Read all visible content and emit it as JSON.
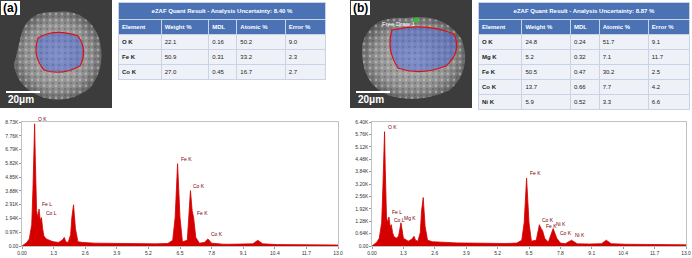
{
  "panels": [
    {
      "label": "(a)",
      "image": {
        "scale_bar": "20μm"
      },
      "table": {
        "title": "eZAF Quant Result - Analysis Uncertainty: 8.40 %",
        "header": [
          "Element",
          "Weight %",
          "MDL",
          "Atomic %",
          "Error %"
        ],
        "rows": [
          [
            "O K",
            "22.1",
            "0.16",
            "50.2",
            "9.0"
          ],
          [
            "Fe K",
            "50.9",
            "0.31",
            "33.2",
            "2.3"
          ],
          [
            "Co K",
            "27.0",
            "0.45",
            "16.7",
            "2.7"
          ]
        ]
      }
    },
    {
      "label": "(b)",
      "image": {
        "scale_bar": "20μm",
        "region_label": "Free Draw 1"
      },
      "table": {
        "title": "eZAF Quant Result - Analysis Uncertainty: 8.87 %",
        "header": [
          "Element",
          "Weight %",
          "MDL",
          "Atomic %",
          "Error %"
        ],
        "rows": [
          [
            "O K",
            "24.8",
            "0.24",
            "51.7",
            "9.1"
          ],
          [
            "Mg K",
            "5.2",
            "0.32",
            "7.1",
            "11.7"
          ],
          [
            "Fe K",
            "50.5",
            "0.47",
            "30.2",
            "2.5"
          ],
          [
            "Co K",
            "13.7",
            "0.66",
            "7.7",
            "4.2"
          ],
          [
            "Ni K",
            "5.9",
            "0.52",
            "3.3",
            "6.6"
          ]
        ]
      }
    }
  ],
  "chart_data": [
    {
      "type": "area",
      "color": "#d40000",
      "x": [
        0,
        0.1,
        0.2,
        0.3,
        0.4,
        0.45,
        0.5,
        0.52,
        0.55,
        0.6,
        0.65,
        0.7,
        0.75,
        0.8,
        0.85,
        0.9,
        1.0,
        1.1,
        1.2,
        1.3,
        1.5,
        1.65,
        1.74,
        1.8,
        1.9,
        2.0,
        2.05,
        2.12,
        2.2,
        2.3,
        2.5,
        3.0,
        3.5,
        4.0,
        4.5,
        5.0,
        5.5,
        6.0,
        6.2,
        6.3,
        6.4,
        6.5,
        6.6,
        6.8,
        6.93,
        7.0,
        7.06,
        7.15,
        7.3,
        7.5,
        7.65,
        7.8,
        8.0,
        8.26,
        8.5,
        9.0,
        9.5,
        9.7,
        9.9,
        10.5,
        11.0,
        12.0,
        13.0
      ],
      "values": [
        0,
        100,
        250,
        500,
        1500,
        4000,
        8000,
        8600,
        6000,
        2500,
        2000,
        2600,
        1800,
        2000,
        1200,
        700,
        500,
        400,
        350,
        300,
        250,
        400,
        600,
        300,
        250,
        800,
        2000,
        2900,
        1200,
        300,
        250,
        200,
        180,
        170,
        160,
        150,
        150,
        180,
        400,
        2000,
        5800,
        2000,
        300,
        400,
        3900,
        2500,
        2000,
        600,
        200,
        250,
        500,
        200,
        150,
        130,
        120,
        110,
        150,
        400,
        150,
        100,
        90,
        80,
        70
      ],
      "xlim": [
        0,
        13
      ],
      "xticks": [
        {
          "value": 0,
          "label": "0.00"
        },
        {
          "value": 1.3,
          "label": "1.3"
        },
        {
          "value": 2.6,
          "label": "2.6"
        },
        {
          "value": 3.9,
          "label": "3.9"
        },
        {
          "value": 5.2,
          "label": "5.2"
        },
        {
          "value": 6.5,
          "label": "6.5"
        },
        {
          "value": 7.8,
          "label": "7.8"
        },
        {
          "value": 9.1,
          "label": "9.1"
        },
        {
          "value": 10.4,
          "label": "10.4"
        },
        {
          "value": 11.7,
          "label": "11.7"
        },
        {
          "value": 13,
          "label": "13.0"
        }
      ],
      "ylim": [
        0,
        8730
      ],
      "yticks": [
        {
          "value": 0,
          "label": "0.00"
        },
        {
          "value": 970,
          "label": "0.97K"
        },
        {
          "value": 1940,
          "label": "1.94K"
        },
        {
          "value": 2910,
          "label": "2.91K"
        },
        {
          "value": 3880,
          "label": "3.88K"
        },
        {
          "value": 4850,
          "label": "4.85K"
        },
        {
          "value": 5820,
          "label": "5.82K"
        },
        {
          "value": 6790,
          "label": "6.79K"
        },
        {
          "value": 7760,
          "label": "7.76K"
        },
        {
          "value": 8730,
          "label": "8.73K"
        }
      ],
      "annotations": [
        {
          "text": "O K",
          "x": 0.52,
          "y": 8600
        },
        {
          "text": "Fe L",
          "x": 0.7,
          "y": 2600
        },
        {
          "text": "Co L",
          "x": 0.85,
          "y": 2000
        },
        {
          "text": "Fe K",
          "x": 6.4,
          "y": 5800
        },
        {
          "text": "Co K",
          "x": 6.93,
          "y": 3900
        },
        {
          "text": "Fe K",
          "x": 7.06,
          "y": 2000
        },
        {
          "text": "Co K",
          "x": 7.65,
          "y": 500
        }
      ]
    },
    {
      "type": "area",
      "color": "#d40000",
      "x": [
        0,
        0.1,
        0.2,
        0.3,
        0.4,
        0.45,
        0.5,
        0.52,
        0.55,
        0.6,
        0.65,
        0.7,
        0.75,
        0.8,
        0.85,
        0.9,
        1.0,
        1.1,
        1.2,
        1.3,
        1.5,
        1.65,
        1.74,
        1.8,
        1.9,
        2.0,
        2.05,
        2.12,
        2.2,
        2.3,
        2.5,
        3.0,
        3.5,
        4.0,
        4.5,
        5.0,
        5.5,
        6.0,
        6.2,
        6.3,
        6.4,
        6.5,
        6.6,
        6.8,
        6.93,
        7.0,
        7.06,
        7.15,
        7.3,
        7.5,
        7.65,
        7.8,
        8.0,
        8.26,
        8.5,
        9.0,
        9.5,
        9.7,
        9.9,
        10.5,
        11.0,
        12.0,
        13.0
      ],
      "values": [
        0,
        80,
        200,
        400,
        1200,
        3000,
        5500,
        5900,
        4000,
        1500,
        1200,
        1500,
        1000,
        1100,
        700,
        500,
        400,
        500,
        1200,
        400,
        250,
        350,
        500,
        300,
        250,
        700,
        1800,
        2500,
        1000,
        300,
        220,
        180,
        160,
        150,
        140,
        130,
        130,
        150,
        300,
        1200,
        3500,
        1200,
        250,
        300,
        1100,
        900,
        800,
        400,
        200,
        900,
        400,
        150,
        120,
        300,
        110,
        100,
        120,
        300,
        120,
        90,
        80,
        70,
        60
      ],
      "xlim": [
        0,
        13
      ],
      "xticks": [
        {
          "value": 0,
          "label": "0.00"
        },
        {
          "value": 1.3,
          "label": "1.3"
        },
        {
          "value": 2.6,
          "label": "2.6"
        },
        {
          "value": 3.9,
          "label": "3.9"
        },
        {
          "value": 5.2,
          "label": "5.2"
        },
        {
          "value": 6.5,
          "label": "6.5"
        },
        {
          "value": 7.8,
          "label": "7.8"
        },
        {
          "value": 9.1,
          "label": "9.1"
        },
        {
          "value": 10.4,
          "label": "10.4"
        },
        {
          "value": 11.7,
          "label": "11.7"
        },
        {
          "value": 13,
          "label": "13.0"
        }
      ],
      "ylim": [
        0,
        6400
      ],
      "yticks": [
        {
          "value": 0,
          "label": "0.00"
        },
        {
          "value": 640,
          "label": "0.64K"
        },
        {
          "value": 1280,
          "label": "1.28K"
        },
        {
          "value": 1920,
          "label": "1.92K"
        },
        {
          "value": 2560,
          "label": "2.56K"
        },
        {
          "value": 3200,
          "label": "3.20K"
        },
        {
          "value": 3840,
          "label": "3.84K"
        },
        {
          "value": 4480,
          "label": "4.48K"
        },
        {
          "value": 5120,
          "label": "5.12K"
        },
        {
          "value": 5760,
          "label": "5.76K"
        },
        {
          "value": 6400,
          "label": "6.40K"
        }
      ],
      "annotations": [
        {
          "text": "O K",
          "x": 0.52,
          "y": 5900
        },
        {
          "text": "Fe L",
          "x": 0.7,
          "y": 1500
        },
        {
          "text": "Co L",
          "x": 0.8,
          "y": 1100
        },
        {
          "text": "Mg K",
          "x": 1.2,
          "y": 1200
        },
        {
          "text": "Fe K",
          "x": 6.4,
          "y": 3500
        },
        {
          "text": "Co K",
          "x": 6.93,
          "y": 1100
        },
        {
          "text": "Fe K",
          "x": 7.06,
          "y": 800
        },
        {
          "text": "Ni K",
          "x": 7.5,
          "y": 900
        },
        {
          "text": "Co K",
          "x": 7.65,
          "y": 400
        },
        {
          "text": "Ni K",
          "x": 8.26,
          "y": 300
        }
      ]
    }
  ]
}
